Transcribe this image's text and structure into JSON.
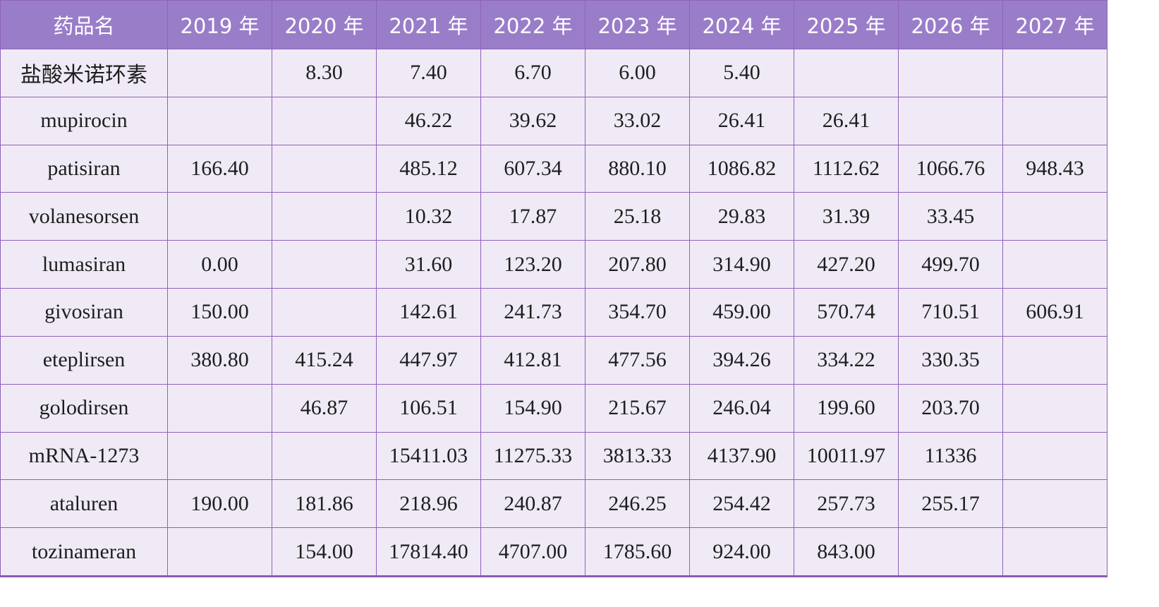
{
  "chart_data": {
    "type": "table",
    "columns": [
      "药品名",
      "2019 年",
      "2020 年",
      "2021 年",
      "2022 年",
      "2023 年",
      "2024 年",
      "2025 年",
      "2026 年",
      "2027 年"
    ],
    "rows": [
      [
        "盐酸米诺环素",
        "",
        "8.30",
        "7.40",
        "6.70",
        "6.00",
        "5.40",
        "",
        "",
        ""
      ],
      [
        "mupirocin",
        "",
        "",
        "46.22",
        "39.62",
        "33.02",
        "26.41",
        "26.41",
        "",
        ""
      ],
      [
        "patisiran",
        "166.40",
        "",
        "485.12",
        "607.34",
        "880.10",
        "1086.82",
        "1112.62",
        "1066.76",
        "948.43"
      ],
      [
        "volanesorsen",
        "",
        "",
        "10.32",
        "17.87",
        "25.18",
        "29.83",
        "31.39",
        "33.45",
        ""
      ],
      [
        "lumasiran",
        "0.00",
        "",
        "31.60",
        "123.20",
        "207.80",
        "314.90",
        "427.20",
        "499.70",
        ""
      ],
      [
        "givosiran",
        "150.00",
        "",
        "142.61",
        "241.73",
        "354.70",
        "459.00",
        "570.74",
        "710.51",
        "606.91"
      ],
      [
        "eteplirsen",
        "380.80",
        "415.24",
        "447.97",
        "412.81",
        "477.56",
        "394.26",
        "334.22",
        "330.35",
        ""
      ],
      [
        "golodirsen",
        "",
        "46.87",
        "106.51",
        "154.90",
        "215.67",
        "246.04",
        "199.60",
        "203.70",
        ""
      ],
      [
        "mRNA-1273",
        "",
        "",
        "15411.03",
        "11275.33",
        "3813.33",
        "4137.90",
        "10011.97",
        "11336",
        ""
      ],
      [
        "ataluren",
        "190.00",
        "181.86",
        "218.96",
        "240.87",
        "246.25",
        "254.42",
        "257.73",
        "255.17",
        ""
      ],
      [
        "tozinameran",
        "",
        "154.00",
        "17814.40",
        "4707.00",
        "1785.60",
        "924.00",
        "843.00",
        "",
        ""
      ]
    ],
    "colors": {
      "header_bg": "#9a7dc9",
      "header_text": "#ffffff",
      "cell_bg": "#f0eaf6",
      "border": "#9063b8"
    }
  }
}
